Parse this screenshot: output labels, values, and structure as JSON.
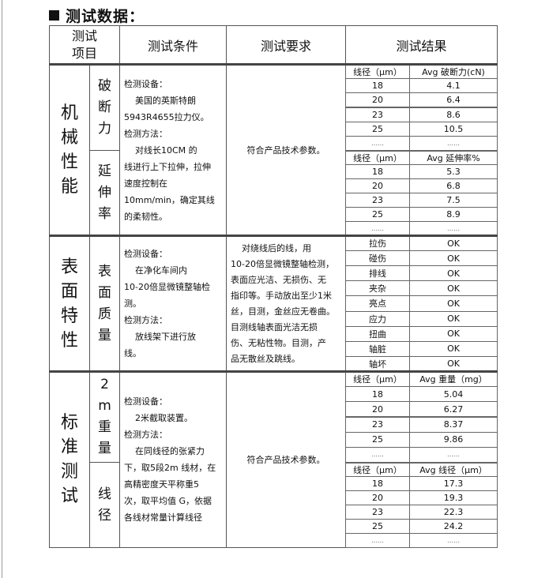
{
  "title": "测试数据：",
  "headers": {
    "item": "测试\n项目",
    "condition": "测试条件",
    "requirement": "测试要求",
    "result": "测试结果"
  },
  "sections": [
    {
      "label": "机械性能",
      "subitems": [
        "破断力",
        "延伸率"
      ],
      "condition": [
        "检测设备：",
        "    美国的英斯特朗",
        "5943R4655拉力仪。",
        "检测方法：",
        "    对线长10CM 的",
        "线进行上下拉伸，拉伸",
        "速度控制在",
        "10mm/min，确定其线",
        "的柔韧性。"
      ],
      "requirement": "符合产品技术参数。",
      "results": [
        {
          "headers": [
            "线径（μm）",
            "Avg 破断力(cN)"
          ],
          "rows": [
            [
              "18",
              "4.1"
            ],
            [
              "20",
              "6.4"
            ],
            [
              "23",
              "8.6"
            ],
            [
              "25",
              "10.5"
            ],
            [
              "……",
              "……"
            ]
          ]
        },
        {
          "headers": [
            "线径（μm）",
            "Avg 延伸率%"
          ],
          "rows": [
            [
              "18",
              "5.3"
            ],
            [
              "20",
              "6.8"
            ],
            [
              "23",
              "7.5"
            ],
            [
              "25",
              "8.9"
            ],
            [
              "……",
              "……"
            ]
          ]
        }
      ]
    },
    {
      "label": "表面特性",
      "subitems": [
        "表面质量"
      ],
      "condition": [
        "检测设备：",
        "    在净化车间内",
        "10-20倍显微镜整轴检",
        "测。",
        "检测方法：",
        "    放线架下进行放",
        "线。"
      ],
      "requirement": [
        "    对绕线后的线，用",
        "10-20倍显微镜整轴检测，",
        "表面应光洁、无损伤、无",
        "指印等。手动放出至少1米",
        "丝，目测，金丝应无卷曲。",
        "目测线轴表面光洁无损",
        "伤、无粘性物。目测，产",
        "品无散丝及跳线。"
      ],
      "results": [
        {
          "rows": [
            [
              "拉伤",
              "OK"
            ],
            [
              "碰伤",
              "OK"
            ],
            [
              "排线",
              "OK"
            ],
            [
              "夹杂",
              "OK"
            ],
            [
              "亮点",
              "OK"
            ],
            [
              "应力",
              "OK"
            ],
            [
              "扭曲",
              "OK"
            ],
            [
              "轴脏",
              "OK"
            ],
            [
              "轴坏",
              "OK"
            ]
          ]
        }
      ]
    },
    {
      "label": "标准测试",
      "subitems": [
        "2m重量",
        "线径"
      ],
      "condition": [
        "检测设备：",
        "    2米截取装置。",
        "检测方法：",
        "    在同线径的张紧力",
        "下，取5段2m 线材，在",
        "高精密度天平称重5",
        "次，取平均值 G，依据",
        "各线材常量计算线径"
      ],
      "requirement": "符合产品技术参数。",
      "results": [
        {
          "headers": [
            "线径（μm）",
            "Avg 重量（mg）"
          ],
          "rows": [
            [
              "18",
              "5.04"
            ],
            [
              "20",
              "6.27"
            ],
            [
              "23",
              "8.37"
            ],
            [
              "25",
              "9.86"
            ],
            [
              "……",
              "……"
            ]
          ]
        },
        {
          "headers": [
            "线径（μm）",
            "Avg 线径（μm）"
          ],
          "rows": [
            [
              "18",
              "17.3"
            ],
            [
              "20",
              "19.3"
            ],
            [
              "23",
              "22.3"
            ],
            [
              "25",
              "24.2"
            ],
            [
              "……",
              "……"
            ]
          ]
        }
      ]
    }
  ]
}
